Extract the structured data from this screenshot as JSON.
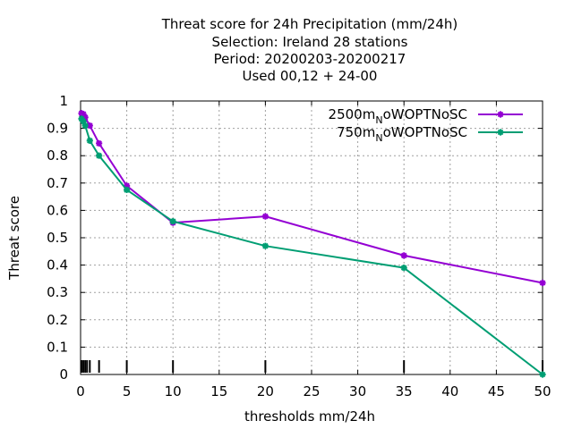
{
  "chart_data": {
    "type": "line",
    "title_lines": [
      "Threat score  for 24h Precipitation (mm/24h)",
      "Selection: Ireland      28 stations",
      "Period: 20200203-20200217",
      "Used  00,12  + 24-00"
    ],
    "xlabel": "thresholds mm/24h",
    "ylabel": "Threat score",
    "xlim": [
      0,
      50
    ],
    "ylim": [
      0,
      1
    ],
    "x_ticks": [
      0,
      5,
      10,
      15,
      20,
      25,
      30,
      35,
      40,
      45,
      50
    ],
    "y_ticks": [
      0,
      0.1,
      0.2,
      0.3,
      0.4,
      0.5,
      0.6,
      0.7,
      0.8,
      0.9,
      1
    ],
    "x_tick_labels": [
      "0",
      "5",
      "10",
      "15",
      "20",
      "25",
      "30",
      "35",
      "40",
      "45",
      "50"
    ],
    "y_tick_labels": [
      "0",
      "0.1",
      "0.2",
      "0.3",
      "0.4",
      "0.5",
      "0.6",
      "0.7",
      "0.8",
      "0.9",
      "1"
    ],
    "grid": true,
    "legend_position": "top-right",
    "threshold_marks": [
      0.1,
      0.3,
      0.5,
      0.7,
      1,
      2,
      5,
      10,
      20,
      35,
      50
    ],
    "series": [
      {
        "name": "2500m",
        "name_sub": "N",
        "name_rest": "oWOPTNoSC",
        "color": "#9400d3",
        "x": [
          0.1,
          0.3,
          0.5,
          1,
          2,
          5,
          10,
          20,
          35,
          50
        ],
        "y": [
          0.955,
          0.952,
          0.94,
          0.91,
          0.845,
          0.69,
          0.555,
          0.578,
          0.435,
          0.335
        ]
      },
      {
        "name": "750m",
        "name_sub": "N",
        "name_rest": "oWOPTNoSC",
        "color": "#009e73",
        "x": [
          0.1,
          0.3,
          0.5,
          1,
          2,
          5,
          10,
          20,
          35,
          50
        ],
        "y": [
          0.935,
          0.925,
          0.91,
          0.855,
          0.8,
          0.675,
          0.56,
          0.47,
          0.39,
          0.0
        ]
      }
    ]
  }
}
